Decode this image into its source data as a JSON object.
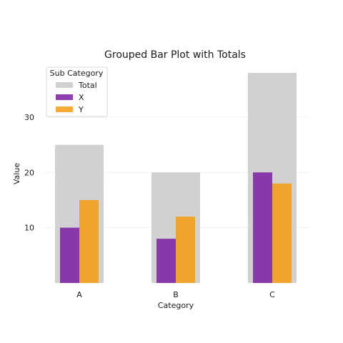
{
  "chart_data": {
    "type": "bar",
    "title": "Grouped Bar Plot with Totals",
    "xlabel": "Category",
    "ylabel": "Value",
    "categories": [
      "A",
      "B",
      "C"
    ],
    "series": [
      {
        "name": "Total",
        "values": [
          25,
          20,
          38
        ],
        "color": "#cccccc"
      },
      {
        "name": "X",
        "values": [
          10,
          8,
          20
        ],
        "color": "#7b1fa2"
      },
      {
        "name": "Y",
        "values": [
          15,
          12,
          18
        ],
        "color": "#f39c12"
      }
    ],
    "yticks": [
      10,
      20,
      30
    ],
    "ylim": [
      0,
      38
    ],
    "grid": true,
    "legend": {
      "title": "Sub Category",
      "placement": "top-left"
    }
  }
}
